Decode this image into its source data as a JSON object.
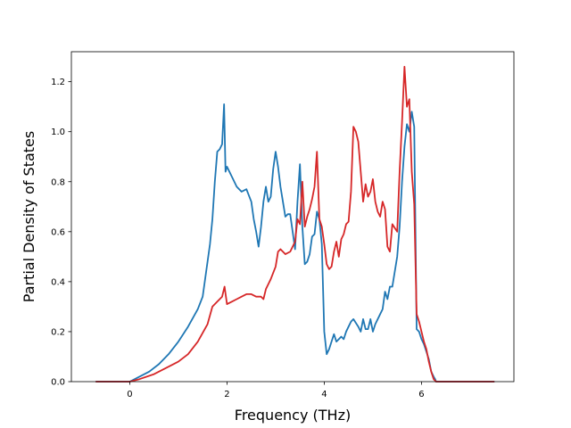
{
  "chart_data": {
    "type": "line",
    "title": "",
    "xlabel": "Frequency (THz)",
    "ylabel": "Partial Density of States",
    "xlim": [
      -1.2,
      7.9
    ],
    "ylim": [
      0.0,
      1.32
    ],
    "xticks": [
      0,
      2,
      4,
      6
    ],
    "yticks": [
      0.0,
      0.2,
      0.4,
      0.6,
      0.8,
      1.0,
      1.2
    ],
    "xtick_labels": [
      "0",
      "2",
      "4",
      "6"
    ],
    "ytick_labels": [
      "0.0",
      "0.2",
      "0.4",
      "0.6",
      "0.8",
      "1.0",
      "1.2"
    ],
    "grid": false,
    "legend": "none",
    "series": [
      {
        "color": "#1f77b4",
        "x": [
          -0.7,
          0.0,
          0.2,
          0.4,
          0.6,
          0.8,
          1.0,
          1.2,
          1.4,
          1.5,
          1.6,
          1.65,
          1.7,
          1.75,
          1.8,
          1.85,
          1.9,
          1.94,
          1.97,
          2.0,
          2.05,
          2.1,
          2.2,
          2.3,
          2.4,
          2.5,
          2.55,
          2.6,
          2.65,
          2.7,
          2.75,
          2.8,
          2.85,
          2.9,
          2.95,
          3.0,
          3.05,
          3.1,
          3.15,
          3.2,
          3.25,
          3.3,
          3.4,
          3.45,
          3.5,
          3.55,
          3.6,
          3.65,
          3.7,
          3.75,
          3.8,
          3.85,
          3.9,
          3.95,
          4.0,
          4.05,
          4.1,
          4.15,
          4.2,
          4.25,
          4.3,
          4.35,
          4.4,
          4.45,
          4.5,
          4.55,
          4.6,
          4.7,
          4.75,
          4.8,
          4.85,
          4.9,
          4.95,
          5.0,
          5.05,
          5.1,
          5.15,
          5.2,
          5.25,
          5.3,
          5.35,
          5.4,
          5.5,
          5.55,
          5.6,
          5.65,
          5.7,
          5.75,
          5.8,
          5.85,
          5.9,
          5.95,
          6.0,
          6.05,
          6.1,
          6.15,
          6.2,
          6.25,
          6.28,
          6.3,
          6.35,
          6.4,
          6.5,
          6.6,
          6.7,
          6.75,
          6.8,
          6.85,
          6.9,
          7.0,
          7.2,
          7.5
        ],
        "y": [
          0.0,
          0.0,
          0.02,
          0.04,
          0.07,
          0.11,
          0.16,
          0.22,
          0.29,
          0.34,
          0.48,
          0.55,
          0.65,
          0.8,
          0.92,
          0.93,
          0.95,
          1.11,
          0.84,
          0.86,
          0.84,
          0.82,
          0.78,
          0.76,
          0.77,
          0.72,
          0.65,
          0.6,
          0.54,
          0.62,
          0.72,
          0.78,
          0.72,
          0.74,
          0.85,
          0.92,
          0.86,
          0.78,
          0.72,
          0.66,
          0.67,
          0.67,
          0.53,
          0.72,
          0.87,
          0.62,
          0.47,
          0.48,
          0.51,
          0.58,
          0.59,
          0.68,
          0.65,
          0.55,
          0.2,
          0.11,
          0.13,
          0.16,
          0.19,
          0.16,
          0.17,
          0.18,
          0.17,
          0.2,
          0.22,
          0.24,
          0.25,
          0.22,
          0.2,
          0.25,
          0.21,
          0.21,
          0.25,
          0.2,
          0.23,
          0.25,
          0.27,
          0.29,
          0.36,
          0.33,
          0.38,
          0.38,
          0.5,
          0.62,
          0.8,
          0.94,
          1.03,
          1.0,
          1.08,
          1.02,
          0.21,
          0.2,
          0.17,
          0.15,
          0.12,
          0.09,
          0.04,
          0.02,
          0.01,
          0.0,
          0.0,
          0.0,
          0.0,
          0.0,
          0.0,
          0.0,
          0.0,
          0.0,
          0.0,
          0.0,
          0.0,
          0.0
        ]
      },
      {
        "color": "#d62728",
        "x": [
          -0.7,
          0.0,
          0.2,
          0.5,
          0.8,
          1.0,
          1.2,
          1.4,
          1.6,
          1.7,
          1.8,
          1.9,
          1.95,
          2.0,
          2.1,
          2.2,
          2.3,
          2.4,
          2.5,
          2.6,
          2.7,
          2.75,
          2.8,
          2.9,
          3.0,
          3.05,
          3.1,
          3.2,
          3.3,
          3.35,
          3.4,
          3.45,
          3.5,
          3.55,
          3.6,
          3.65,
          3.7,
          3.75,
          3.8,
          3.85,
          3.9,
          3.95,
          4.0,
          4.05,
          4.1,
          4.15,
          4.2,
          4.25,
          4.3,
          4.35,
          4.4,
          4.45,
          4.5,
          4.55,
          4.6,
          4.65,
          4.7,
          4.75,
          4.8,
          4.85,
          4.9,
          4.95,
          5.0,
          5.05,
          5.1,
          5.15,
          5.2,
          5.25,
          5.3,
          5.35,
          5.4,
          5.5,
          5.55,
          5.6,
          5.65,
          5.7,
          5.75,
          5.8,
          5.85,
          5.9,
          5.95,
          6.0,
          6.05,
          6.1,
          6.15,
          6.2,
          6.25,
          6.3,
          6.35,
          6.4,
          6.5,
          6.6,
          6.7,
          6.75,
          6.8,
          6.85,
          6.9,
          7.0,
          7.2,
          7.5
        ],
        "y": [
          0.0,
          0.0,
          0.01,
          0.03,
          0.06,
          0.08,
          0.11,
          0.16,
          0.23,
          0.3,
          0.32,
          0.34,
          0.38,
          0.31,
          0.32,
          0.33,
          0.34,
          0.35,
          0.35,
          0.34,
          0.34,
          0.33,
          0.37,
          0.41,
          0.46,
          0.52,
          0.53,
          0.51,
          0.52,
          0.54,
          0.56,
          0.65,
          0.63,
          0.8,
          0.62,
          0.66,
          0.69,
          0.73,
          0.78,
          0.92,
          0.65,
          0.62,
          0.55,
          0.47,
          0.45,
          0.46,
          0.52,
          0.56,
          0.5,
          0.57,
          0.59,
          0.63,
          0.64,
          0.76,
          1.02,
          1.0,
          0.96,
          0.84,
          0.72,
          0.79,
          0.74,
          0.76,
          0.81,
          0.72,
          0.68,
          0.66,
          0.72,
          0.69,
          0.54,
          0.52,
          0.63,
          0.6,
          0.84,
          1.04,
          1.26,
          1.1,
          1.13,
          0.84,
          0.71,
          0.27,
          0.24,
          0.2,
          0.16,
          0.13,
          0.08,
          0.04,
          0.01,
          0.0,
          0.0,
          0.0,
          0.0,
          0.0,
          0.0,
          0.0,
          0.0,
          0.0,
          0.0,
          0.0,
          0.0,
          0.0
        ]
      }
    ]
  }
}
